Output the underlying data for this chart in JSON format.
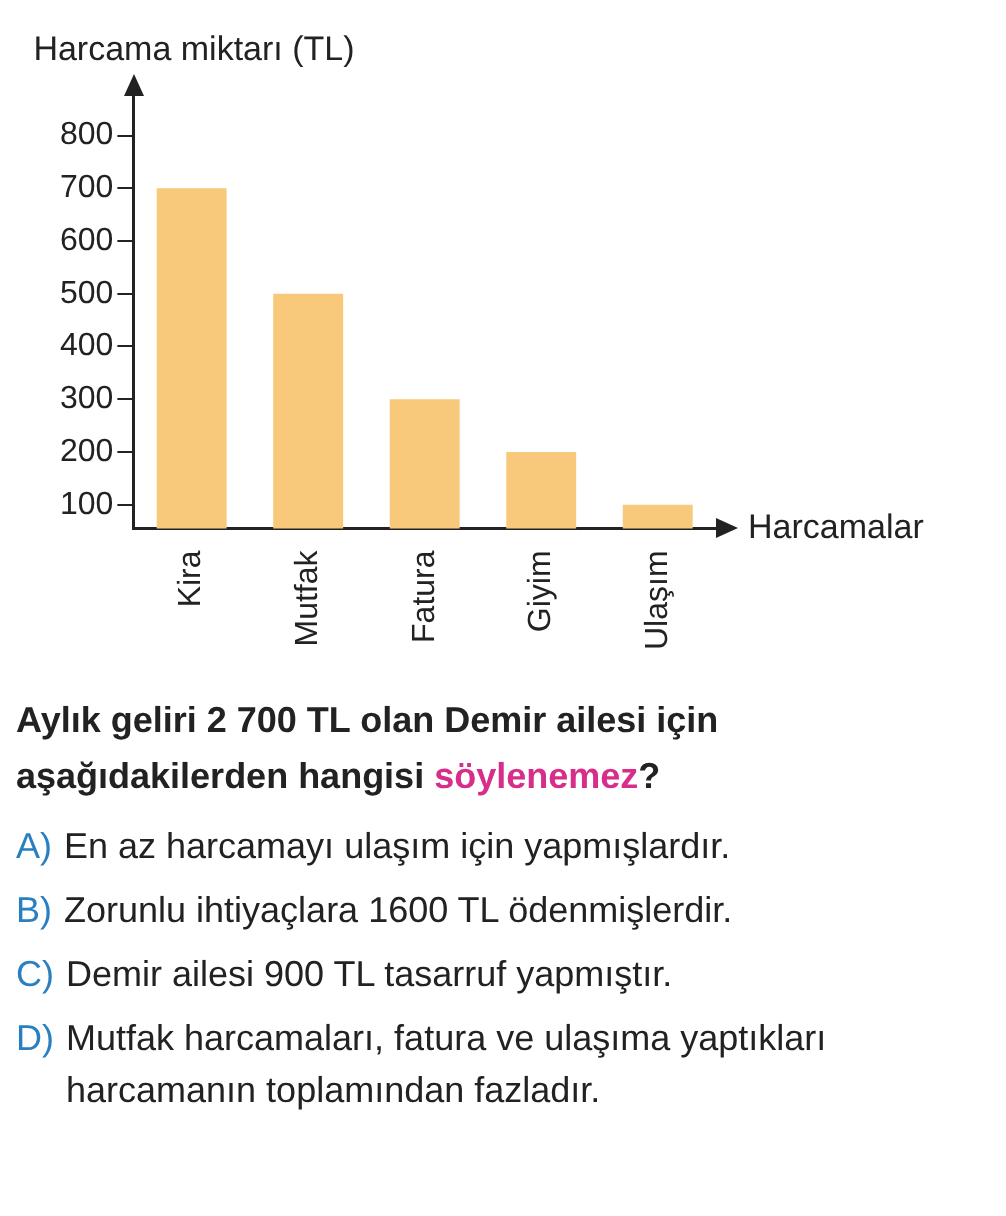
{
  "chart_data": {
    "type": "bar",
    "ylabel": "Harcama miktarı (TL)",
    "xlabel": "Harcamalar",
    "categories": [
      "Kira",
      "Mutfak",
      "Fatura",
      "Giyim",
      "Ulaşım"
    ],
    "values": [
      700,
      500,
      300,
      200,
      100
    ],
    "color": "#f9c97b",
    "ylim": [
      55,
      875
    ],
    "yticks": [
      100,
      200,
      300,
      400,
      500,
      600,
      700,
      800
    ],
    "grid": false,
    "legend": false,
    "annotations": [
      "Aylık geliri 2 700 TL olan Demir ailesi için aşağıdakilerden hangisi ",
      "söylenemez",
      "?",
      "A)",
      "En az harcamayı ulaşım için yapmışlardır.",
      "B)",
      "Zorunlu ihtiyaçlara 1600 TL ödenmişlerdir.",
      "C)",
      "Demir ailesi 900 TL tasarruf yapmıştır.",
      "D)",
      "Mutfak harcamaları, fatura ve ulaşıma yaptıkları harcamanın toplamından fazladır."
    ]
  }
}
